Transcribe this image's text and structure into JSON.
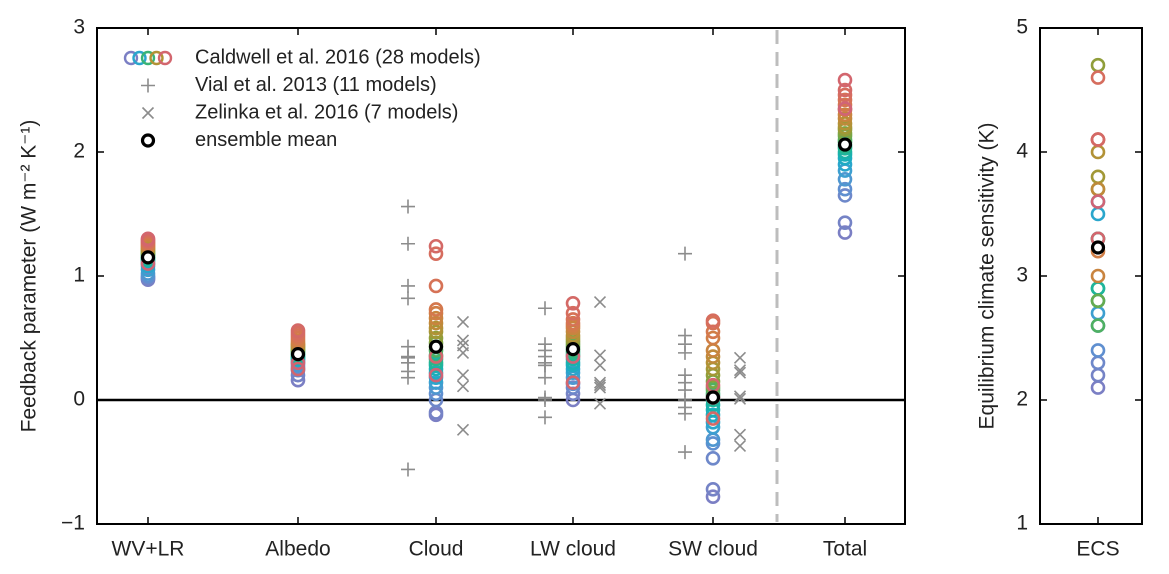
{
  "chart_data": [
    {
      "type": "strip",
      "ylabel": "Feedback parameter (W m⁻² K⁻¹)",
      "categories": [
        "WV+LR",
        "Albedo",
        "Cloud",
        "LW  cloud",
        "SW  cloud",
        "Total"
      ],
      "ylim": [
        -1,
        3
      ],
      "yticks": [
        {
          "value": -1,
          "label": "−1"
        },
        0,
        1,
        2,
        3
      ],
      "reference_line": 0,
      "legend": "upper left",
      "series": [
        {
          "name": "Caldwell et al. 2016 (28 models)",
          "marker": "circle",
          "colors": [
            "#7b7fc4",
            "#7583c6",
            "#6e88ca",
            "#5f8fd0",
            "#4f97d0",
            "#3d9fd0",
            "#2aa6cc",
            "#1fabc4",
            "#1aafb8",
            "#1ab2aa",
            "#1fb59a",
            "#2ab589",
            "#3ab376",
            "#4fb062",
            "#65ab50",
            "#7ca543",
            "#909e3a",
            "#a29836",
            "#b29236",
            "#bf8a3a",
            "#c9843f",
            "#d07e46",
            "#d4784e",
            "#d67256",
            "#d66d5e",
            "#d46966",
            "#d3666e",
            "#d06476"
          ],
          "values": [
            [
              0.97,
              0.98,
              0.99,
              1.0,
              1.02,
              1.05,
              1.08,
              1.1,
              1.12,
              1.13,
              1.14,
              1.15,
              1.16,
              1.17,
              1.18,
              1.19,
              1.2,
              1.21,
              1.22,
              1.23,
              1.24,
              1.25,
              1.26,
              1.27,
              1.28,
              1.29,
              1.3,
              1.1
            ],
            [
              0.16,
              0.2,
              0.24,
              0.26,
              0.28,
              0.3,
              0.32,
              0.33,
              0.34,
              0.35,
              0.36,
              0.37,
              0.38,
              0.39,
              0.4,
              0.41,
              0.42,
              0.43,
              0.44,
              0.45,
              0.46,
              0.48,
              0.5,
              0.52,
              0.54,
              0.56,
              0.25,
              0.3
            ],
            [
              -0.12,
              -0.1,
              0.0,
              0.05,
              0.1,
              0.14,
              0.18,
              0.22,
              0.25,
              0.28,
              0.3,
              0.33,
              0.36,
              0.4,
              0.43,
              0.46,
              0.5,
              0.55,
              0.58,
              0.62,
              0.66,
              0.7,
              0.73,
              0.92,
              1.18,
              1.24,
              0.35,
              0.2
            ],
            [
              0.0,
              0.05,
              0.1,
              0.13,
              0.18,
              0.22,
              0.25,
              0.28,
              0.3,
              0.33,
              0.36,
              0.38,
              0.4,
              0.42,
              0.44,
              0.46,
              0.48,
              0.5,
              0.52,
              0.55,
              0.58,
              0.6,
              0.62,
              0.65,
              0.7,
              0.78,
              0.14,
              0.35
            ],
            [
              -0.78,
              -0.72,
              -0.47,
              -0.35,
              -0.32,
              -0.22,
              -0.18,
              -0.12,
              -0.08,
              -0.04,
              0.0,
              0.03,
              0.05,
              0.08,
              0.1,
              0.15,
              0.2,
              0.25,
              0.3,
              0.35,
              0.4,
              0.5,
              0.55,
              0.62,
              0.64,
              -0.15,
              0.12,
              0.02
            ],
            [
              1.35,
              1.43,
              1.65,
              1.7,
              1.78,
              1.85,
              1.9,
              1.95,
              1.98,
              2.0,
              2.03,
              2.05,
              2.08,
              2.1,
              2.13,
              2.15,
              2.18,
              2.2,
              2.23,
              2.27,
              2.3,
              2.34,
              2.38,
              2.42,
              2.46,
              2.5,
              2.58,
              2.35
            ]
          ]
        },
        {
          "name": "Vial et al. 2013 (11 models)",
          "marker": "plus",
          "color": "#8c8c8c",
          "values": [
            null,
            null,
            [
              1.56,
              1.26,
              0.92,
              0.82,
              0.43,
              0.35,
              0.23,
              0.18,
              0.34,
              -0.56,
              0.3
            ],
            [
              0.74,
              0.45,
              0.4,
              0.35,
              0.28,
              0.28,
              0.18,
              0.02,
              0.0,
              -0.14,
              0.3
            ],
            [
              1.18,
              0.52,
              0.45,
              0.38,
              0.2,
              0.14,
              0.08,
              0.0,
              -0.06,
              -0.11,
              -0.42
            ],
            null
          ]
        },
        {
          "name": "Zelinka et al. 2016 (7 models)",
          "marker": "x",
          "color": "#8c8c8c",
          "values": [
            null,
            null,
            [
              0.63,
              0.48,
              0.44,
              0.38,
              0.2,
              0.11,
              -0.24
            ],
            [
              0.79,
              0.36,
              0.28,
              0.14,
              0.12,
              0.1,
              -0.03
            ],
            [
              0.34,
              0.22,
              0.03,
              0.01,
              -0.28,
              -0.37,
              0.24
            ],
            null
          ]
        },
        {
          "name": "ensemble mean",
          "marker": "dot",
          "color": "#000000",
          "values": [
            1.15,
            0.37,
            0.43,
            0.41,
            0.02,
            2.06
          ]
        }
      ]
    },
    {
      "type": "strip",
      "ylabel": "Equilibrium climate sensitivity (K)",
      "categories": [
        "ECS"
      ],
      "ylim": [
        1,
        5
      ],
      "yticks": [
        1,
        2,
        3,
        4,
        5
      ],
      "series": [
        {
          "marker": "circle",
          "values": [
            [
              2.1,
              2.2,
              2.3,
              2.4,
              2.6,
              2.7,
              3.5,
              3.6,
              2.8,
              2.9,
              2.9,
              3.3,
              3.3,
              2.6,
              2.8,
              3.7,
              4.7,
              3.8,
              4.0,
              3.7,
              3.0,
              3.2,
              4.1,
              4.1,
              4.6,
              4.1,
              3.3,
              3.6
            ]
          ]
        },
        {
          "marker": "dot",
          "color": "#000000",
          "values": [
            3.23
          ]
        }
      ]
    }
  ]
}
